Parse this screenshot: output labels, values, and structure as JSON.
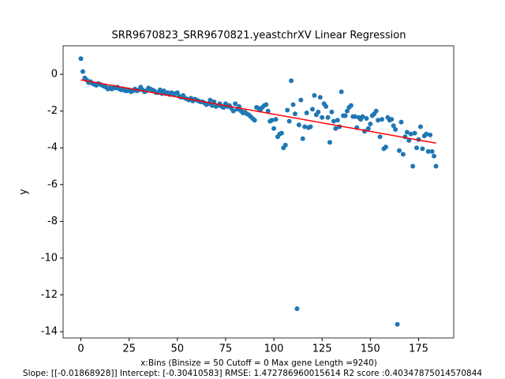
{
  "chart_data": {
    "type": "scatter",
    "title": "SRR9670823_SRR9670821.yeastchrXV Linear Regression",
    "xlabel": [
      "x:Bins  (Binsize = 50 Cutoff = 0 Max gene Length =9240)",
      "Slope: [[-0.01868928]] Intercept: [-0.30410583] RMSE: 1.472786960015614 R2 score :0.40347875014570844"
    ],
    "ylabel": "y",
    "series": [
      {
        "color": "#1f77b4",
        "x": [
          0,
          1,
          2,
          3,
          4,
          5,
          6,
          7,
          8,
          9,
          10,
          11,
          12,
          13,
          14,
          15,
          16,
          17,
          18,
          19,
          20,
          21,
          22,
          23,
          24,
          25,
          26,
          27,
          28,
          29,
          30,
          31,
          32,
          33,
          34,
          35,
          36,
          37,
          38,
          39,
          40,
          41,
          42,
          43,
          44,
          45,
          46,
          47,
          48,
          49,
          50,
          51,
          52,
          53,
          54,
          55,
          56,
          57,
          58,
          59,
          60,
          61,
          62,
          63,
          64,
          65,
          66,
          67,
          68,
          69,
          70,
          71,
          72,
          73,
          74,
          75,
          76,
          77,
          78,
          79,
          80,
          81,
          82,
          83,
          84,
          85,
          86,
          87,
          88,
          89,
          90,
          91,
          92,
          93,
          94,
          95,
          96,
          97,
          98,
          99,
          100,
          101,
          102,
          103,
          104,
          105,
          106,
          107,
          108,
          109,
          110,
          111,
          112,
          113,
          114,
          115,
          116,
          117,
          118,
          119,
          120,
          121,
          122,
          123,
          124,
          125,
          126,
          127,
          128,
          129,
          130,
          131,
          132,
          133,
          134,
          135,
          136,
          137,
          138,
          139,
          140,
          141,
          142,
          143,
          144,
          145,
          146,
          147,
          148,
          149,
          150,
          151,
          152,
          153,
          154,
          155,
          156,
          157,
          158,
          159,
          160,
          161,
          162,
          163,
          164,
          165,
          166,
          167,
          168,
          169,
          170,
          171,
          172,
          173,
          174,
          175,
          176,
          177,
          178,
          179,
          180,
          181,
          182,
          183,
          184
        ],
        "values": [
          0.85,
          0.15,
          -0.2,
          -0.3,
          -0.45,
          -0.4,
          -0.5,
          -0.55,
          -0.6,
          -0.5,
          -0.55,
          -0.6,
          -0.65,
          -0.7,
          -0.8,
          -0.75,
          -0.8,
          -0.7,
          -0.75,
          -0.7,
          -0.8,
          -0.85,
          -0.8,
          -0.9,
          -0.9,
          -0.85,
          -0.95,
          -0.9,
          -0.8,
          -0.9,
          -0.85,
          -0.7,
          -0.85,
          -0.95,
          -0.9,
          -0.75,
          -0.8,
          -0.85,
          -0.9,
          -1.0,
          -1.0,
          -0.85,
          -1.05,
          -0.9,
          -1.05,
          -1.0,
          -1.1,
          -1.0,
          -1.1,
          -1.05,
          -1.0,
          -1.2,
          -1.25,
          -1.15,
          -1.3,
          -1.35,
          -1.4,
          -1.3,
          -1.45,
          -1.35,
          -1.4,
          -1.45,
          -1.5,
          -1.5,
          -1.55,
          -1.65,
          -1.6,
          -1.4,
          -1.7,
          -1.5,
          -1.75,
          -1.7,
          -1.6,
          -1.75,
          -1.8,
          -1.6,
          -1.75,
          -1.7,
          -1.85,
          -2.0,
          -1.6,
          -1.9,
          -1.75,
          -2.0,
          -2.1,
          -2.05,
          -2.15,
          -2.2,
          -2.3,
          -2.4,
          -2.5,
          -1.8,
          -1.85,
          -1.95,
          -1.8,
          -1.7,
          -1.65,
          -2.0,
          -2.55,
          -2.5,
          -2.95,
          -2.45,
          -3.4,
          -3.25,
          -3.2,
          -4.0,
          -3.85,
          -1.95,
          -2.55,
          -0.35,
          -1.65,
          -2.15,
          -12.75,
          -2.75,
          -1.4,
          -3.5,
          -2.85,
          -2.1,
          -2.9,
          -2.85,
          -1.9,
          -1.15,
          -2.2,
          -2.05,
          -1.25,
          -2.35,
          -1.6,
          -1.75,
          -2.35,
          -3.7,
          -2.05,
          -2.55,
          -2.95,
          -2.5,
          -2.85,
          -0.95,
          -2.25,
          -2.25,
          -2.0,
          -1.8,
          -1.7,
          -2.3,
          -2.3,
          -2.9,
          -2.35,
          -2.45,
          -2.3,
          -3.1,
          -2.4,
          -2.95,
          -2.7,
          -2.25,
          -2.15,
          -2.0,
          -2.5,
          -3.4,
          -2.45,
          -4.05,
          -3.95,
          -2.35,
          -2.5,
          -2.45,
          -2.8,
          -3.0,
          -13.6,
          -4.15,
          -2.6,
          -4.35,
          -3.4,
          -3.15,
          -3.6,
          -3.25,
          -5.0,
          -3.2,
          -4.0,
          -3.55,
          -2.85,
          -4.05,
          -3.35,
          -3.25,
          -4.2,
          -3.3,
          -4.2,
          -4.45,
          -5.0
        ]
      }
    ],
    "regression_line": {
      "color": "#ff0000",
      "x": [
        0,
        184
      ],
      "y": [
        -0.30410583,
        -3.74293335
      ]
    },
    "xlim": [
      -9.2,
      193.2
    ],
    "ylim": [
      -14.34,
      1.55
    ],
    "xticks": [
      0,
      25,
      50,
      75,
      100,
      125,
      150,
      175
    ],
    "yticks": [
      0,
      -2,
      -4,
      -6,
      -8,
      -10,
      -12,
      -14
    ]
  }
}
